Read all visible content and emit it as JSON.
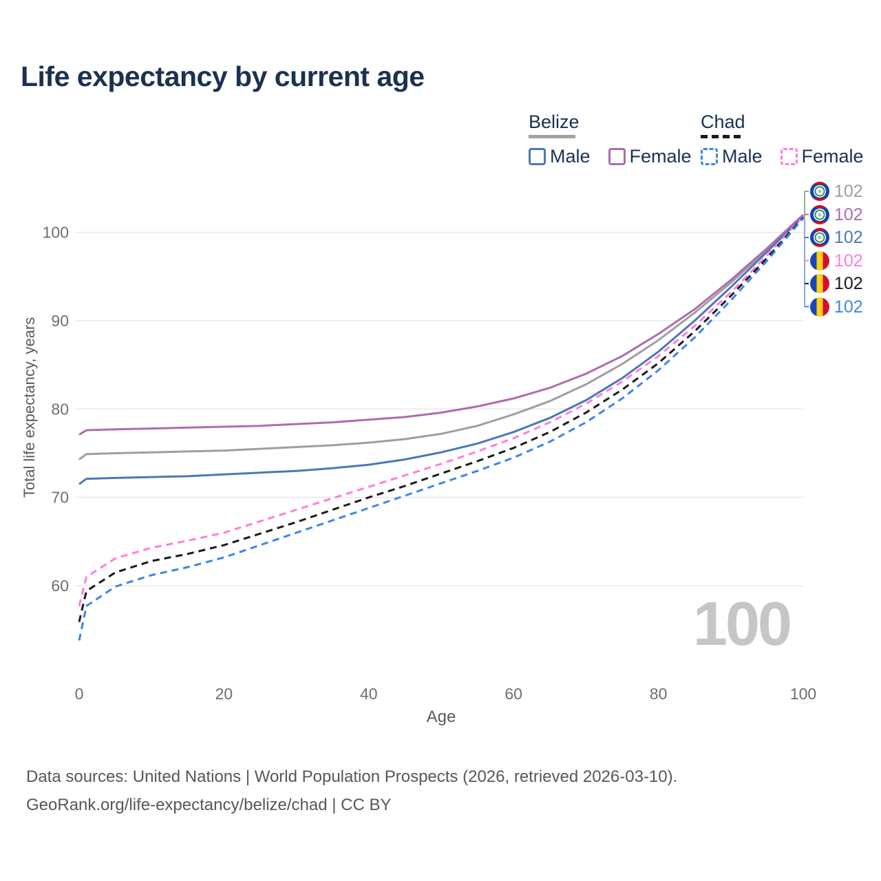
{
  "title": "Life expectancy by current age",
  "legend": {
    "groups": [
      {
        "label": "Belize",
        "underline": "solid",
        "underline_color": "#a0a0a0",
        "items": [
          {
            "label": "Male",
            "color": "#4a77b8",
            "dashed": false
          },
          {
            "label": "Female",
            "color": "#ad6cae",
            "dashed": false
          }
        ]
      },
      {
        "label": "Chad",
        "underline": "dashed",
        "underline_color": "#1a1a1a",
        "items": [
          {
            "label": "Male",
            "color": "#3c85e8",
            "dashed": true
          },
          {
            "label": "Female",
            "color": "#ff7de0",
            "dashed": true
          }
        ]
      }
    ]
  },
  "chart_data": {
    "type": "line",
    "title": "Life expectancy by current age",
    "xlabel": "Age",
    "ylabel": "Total life expectancy, years",
    "x": [
      0,
      1,
      5,
      10,
      15,
      20,
      25,
      30,
      35,
      40,
      45,
      50,
      55,
      60,
      65,
      70,
      75,
      80,
      85,
      90,
      95,
      100
    ],
    "xticks": [
      0,
      20,
      40,
      60,
      80,
      100
    ],
    "yticks": [
      60,
      70,
      80,
      90,
      100
    ],
    "xlim": [
      0,
      100
    ],
    "ylim": [
      53,
      103
    ],
    "grid": "horizontal",
    "legend_position": "top-right",
    "series": [
      {
        "name": "Belize Total",
        "group": "Belize",
        "sex": "Total",
        "color": "#9e9e9e",
        "dash": false,
        "end_value": 102,
        "values": [
          74.3,
          74.9,
          75.0,
          75.1,
          75.2,
          75.3,
          75.5,
          75.7,
          75.9,
          76.2,
          76.6,
          77.2,
          78.1,
          79.4,
          80.9,
          82.8,
          85.1,
          87.8,
          90.9,
          94.3,
          98.0,
          101.9
        ]
      },
      {
        "name": "Belize Female",
        "group": "Belize",
        "sex": "Female",
        "color": "#ad6cae",
        "dash": false,
        "end_value": 102,
        "values": [
          77.1,
          77.6,
          77.7,
          77.8,
          77.9,
          78.0,
          78.1,
          78.3,
          78.5,
          78.8,
          79.1,
          79.6,
          80.3,
          81.2,
          82.4,
          84.0,
          86.0,
          88.5,
          91.3,
          94.6,
          98.2,
          102.0
        ]
      },
      {
        "name": "Belize Male",
        "group": "Belize",
        "sex": "Male",
        "color": "#4a77b8",
        "dash": false,
        "end_value": 102,
        "values": [
          71.5,
          72.1,
          72.2,
          72.3,
          72.4,
          72.6,
          72.8,
          73.0,
          73.3,
          73.7,
          74.3,
          75.1,
          76.1,
          77.4,
          79.0,
          81.0,
          83.5,
          86.5,
          90.0,
          93.8,
          97.8,
          101.8
        ]
      },
      {
        "name": "Chad Female",
        "group": "Chad",
        "sex": "Female",
        "color": "#ff7de0",
        "dash": true,
        "end_value": 102,
        "values": [
          57.7,
          61.0,
          63.1,
          64.3,
          65.1,
          66.0,
          67.3,
          68.6,
          69.9,
          71.2,
          72.5,
          73.8,
          75.2,
          76.7,
          78.5,
          80.6,
          83.1,
          86.0,
          89.4,
          93.2,
          97.4,
          101.8
        ]
      },
      {
        "name": "Chad Total",
        "group": "Chad",
        "sex": "Total",
        "color": "#1a1a1a",
        "dash": true,
        "end_value": 102,
        "values": [
          55.9,
          59.4,
          61.5,
          62.8,
          63.6,
          64.6,
          65.9,
          67.2,
          68.6,
          70.0,
          71.3,
          72.7,
          74.1,
          75.6,
          77.4,
          79.6,
          82.2,
          85.2,
          88.8,
          92.8,
          97.1,
          101.7
        ]
      },
      {
        "name": "Chad Male",
        "group": "Chad",
        "sex": "Male",
        "color": "#3c85e8",
        "dash": true,
        "end_value": 102,
        "values": [
          53.8,
          57.7,
          59.9,
          61.2,
          62.1,
          63.2,
          64.6,
          66.0,
          67.4,
          68.8,
          70.2,
          71.6,
          73.0,
          74.5,
          76.3,
          78.5,
          81.2,
          84.4,
          88.1,
          92.3,
          96.8,
          101.6
        ]
      }
    ]
  },
  "end_labels": [
    {
      "value": "102",
      "color": "#9e9e9e",
      "flag": "belize"
    },
    {
      "value": "102",
      "color": "#ad6cae",
      "flag": "belize"
    },
    {
      "value": "102",
      "color": "#4a77b8",
      "flag": "belize"
    },
    {
      "value": "102",
      "color": "#ff7de0",
      "flag": "chad"
    },
    {
      "value": "102",
      "color": "#1a1a1a",
      "flag": "chad"
    },
    {
      "value": "102",
      "color": "#3c85e8",
      "flag": "chad"
    }
  ],
  "watermark": "100",
  "footer": {
    "line1": "Data sources: United Nations | World Population Prospects (2026, retrieved 2026-03-10).",
    "line2": "GeoRank.org/life-expectancy/belize/chad | CC BY"
  }
}
